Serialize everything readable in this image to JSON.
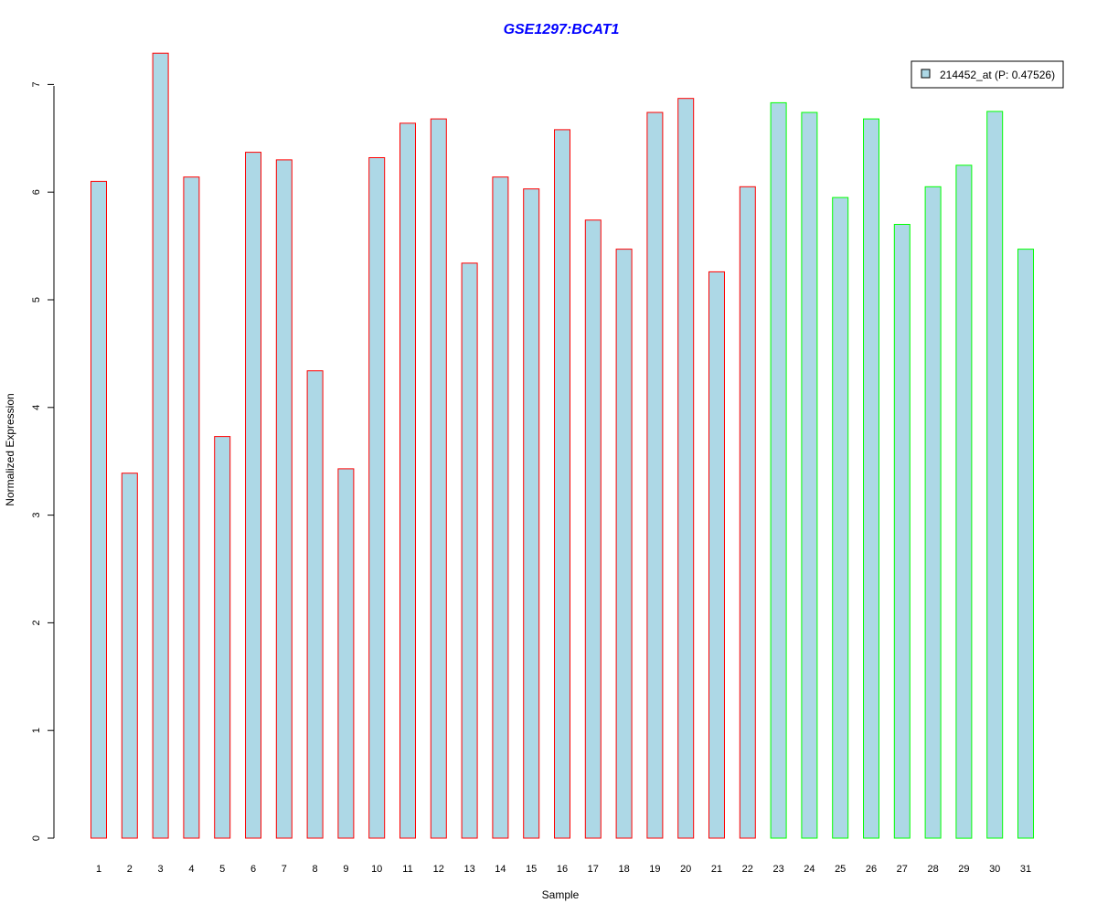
{
  "chart_data": {
    "type": "bar",
    "title": "GSE1297:BCAT1",
    "xlabel": "Sample",
    "ylabel": "Normalized Expression",
    "ylim": [
      0,
      7.3
    ],
    "yticks": [
      "0",
      "1",
      "2",
      "3",
      "4",
      "5",
      "6",
      "7"
    ],
    "categories": [
      "1",
      "2",
      "3",
      "4",
      "5",
      "6",
      "7",
      "8",
      "9",
      "10",
      "11",
      "12",
      "13",
      "14",
      "15",
      "16",
      "17",
      "18",
      "19",
      "20",
      "21",
      "22",
      "23",
      "24",
      "25",
      "26",
      "27",
      "28",
      "29",
      "30",
      "31"
    ],
    "values": [
      6.1,
      3.39,
      7.29,
      6.14,
      3.73,
      6.37,
      6.3,
      4.34,
      3.43,
      6.32,
      6.64,
      6.68,
      5.34,
      6.14,
      6.03,
      6.58,
      5.74,
      5.47,
      6.74,
      6.87,
      5.26,
      6.05,
      6.83,
      6.74,
      5.95,
      6.68,
      5.7,
      6.05,
      6.25,
      6.75,
      5.47
    ],
    "groups": [
      1,
      1,
      1,
      1,
      1,
      1,
      1,
      1,
      1,
      1,
      1,
      1,
      1,
      1,
      1,
      1,
      1,
      1,
      1,
      1,
      1,
      1,
      2,
      2,
      2,
      2,
      2,
      2,
      2,
      2,
      2
    ],
    "series": [
      {
        "name": "214452_at (P: 0.47526)"
      }
    ],
    "legend": {
      "label": "214452_at (P: 0.47526)",
      "position": "top-right"
    },
    "grid": false,
    "colors": {
      "fill": "#add8e6",
      "group1_border": "#ff0000",
      "group2_border": "#00ff00",
      "title": "#0000ff"
    }
  }
}
